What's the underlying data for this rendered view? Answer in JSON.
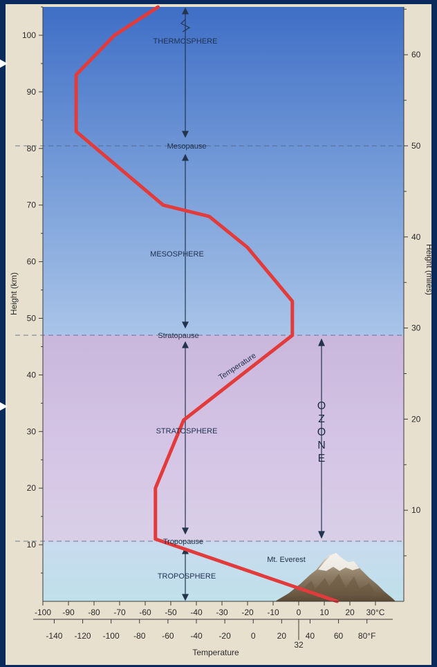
{
  "colors": {
    "page_bg": "#0b2a5c",
    "panel_bg": "#e8e0cf",
    "sky_top": "#3f6ec6",
    "sky_mid": "#86aee0",
    "stratosphere": "#cdbde0",
    "troposphere": "#c4deeb",
    "temperature_line": "#e23b3b",
    "arrow": "#23344d"
  },
  "labels": {
    "thermosphere": "THERMOSPHERE",
    "mesopause": "Mesopause",
    "mesosphere": "MESOSPHERE",
    "stratopause": "Stratopause",
    "temperature_curve": "Temperature",
    "stratosphere": "STRATOSPHERE",
    "ozone": "OZONE",
    "tropopause": "Tropopause",
    "everest": "Mt. Everest",
    "troposphere": "TROPOSPHERE"
  },
  "chart_data": {
    "type": "line",
    "xlabel": "Temperature",
    "ylabel_left": "Height (km)",
    "ylabel_right": "Height (miles)",
    "xlim_celsius": [
      -100,
      30
    ],
    "ylim_km": [
      0,
      105
    ],
    "x_ticks_celsius": [
      "-100",
      "-90",
      "-80",
      "-70",
      "-60",
      "-50",
      "-40",
      "-30",
      "-20",
      "-10",
      "0",
      "10",
      "20",
      "30°C"
    ],
    "x_ticks_fahrenheit": [
      "-140",
      "-120",
      "-100",
      "-80",
      "-60",
      "-40",
      "-20",
      "0",
      "20",
      "40",
      "60",
      "80°F"
    ],
    "fahrenheit_extra_label": "32",
    "y_ticks_km": [
      "10",
      "20",
      "30",
      "40",
      "50",
      "60",
      "70",
      "80",
      "90",
      "100"
    ],
    "y_ticks_miles": [
      "10",
      "20",
      "30",
      "40",
      "50",
      "60"
    ],
    "series": [
      {
        "points_celsius_km": [
          [
            15,
            0
          ],
          [
            -56,
            11
          ],
          [
            -56,
            20
          ],
          [
            -45,
            32
          ],
          [
            -2.5,
            47
          ],
          [
            -2.5,
            53
          ],
          [
            -20,
            62.5
          ],
          [
            -35,
            68
          ],
          [
            -53,
            70
          ],
          [
            -87,
            83
          ],
          [
            -87,
            93
          ],
          [
            -72,
            100
          ],
          [
            -55,
            105
          ]
        ]
      }
    ],
    "boundaries_km": {
      "tropopause": 10.5,
      "stratopause": 47.5,
      "mesopause": 80.5
    },
    "ozone_range_km": [
      10.5,
      47.5
    ],
    "everest_km": 8.8,
    "grid": false
  }
}
